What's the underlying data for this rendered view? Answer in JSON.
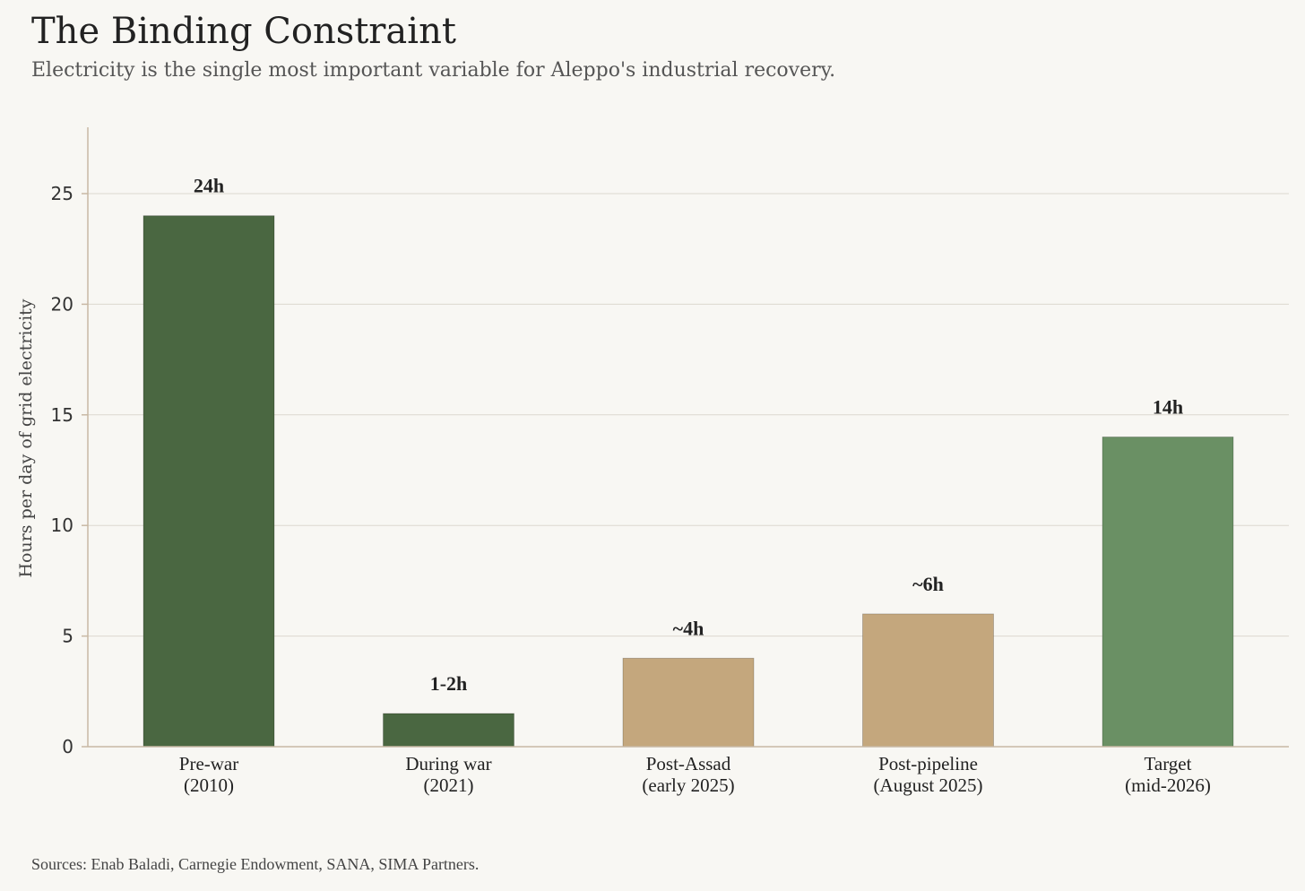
{
  "title": "The Binding Constraint",
  "subtitle": "Electricity is the single most important variable for Aleppo's industrial recovery.",
  "source": "Sources: Enab Baladi, Carnegie Endowment, SANA, SIMA Partners.",
  "colors": {
    "background": "#f8f7f3",
    "dark_green": "#4a6741",
    "tan": "#c4a77d",
    "light_green": "#6a9064",
    "grid": "#dcd8cf",
    "axis": "#c8b8a4"
  },
  "chart_data": {
    "type": "bar",
    "title": "The Binding Constraint",
    "xlabel": "",
    "ylabel": "Hours per day of grid electricity",
    "ylim": [
      0,
      28
    ],
    "yticks": [
      0,
      5,
      10,
      15,
      20,
      25
    ],
    "ytick_labels": [
      "0",
      "5",
      "10",
      "15",
      "20",
      "25"
    ],
    "grid": true,
    "categories": [
      [
        "Pre-war",
        "(2010)"
      ],
      [
        "During war",
        "(2021)"
      ],
      [
        "Post-Assad",
        "(early 2025)"
      ],
      [
        "Post-pipeline",
        "(August 2025)"
      ],
      [
        "Target",
        "(mid-2026)"
      ]
    ],
    "values": [
      24,
      1.5,
      4,
      6,
      14
    ],
    "labels": [
      "24h",
      "1-2h",
      "~4h",
      "~6h",
      "14h"
    ],
    "bar_colors": [
      "dark_green",
      "dark_green",
      "tan",
      "tan",
      "light_green"
    ]
  }
}
